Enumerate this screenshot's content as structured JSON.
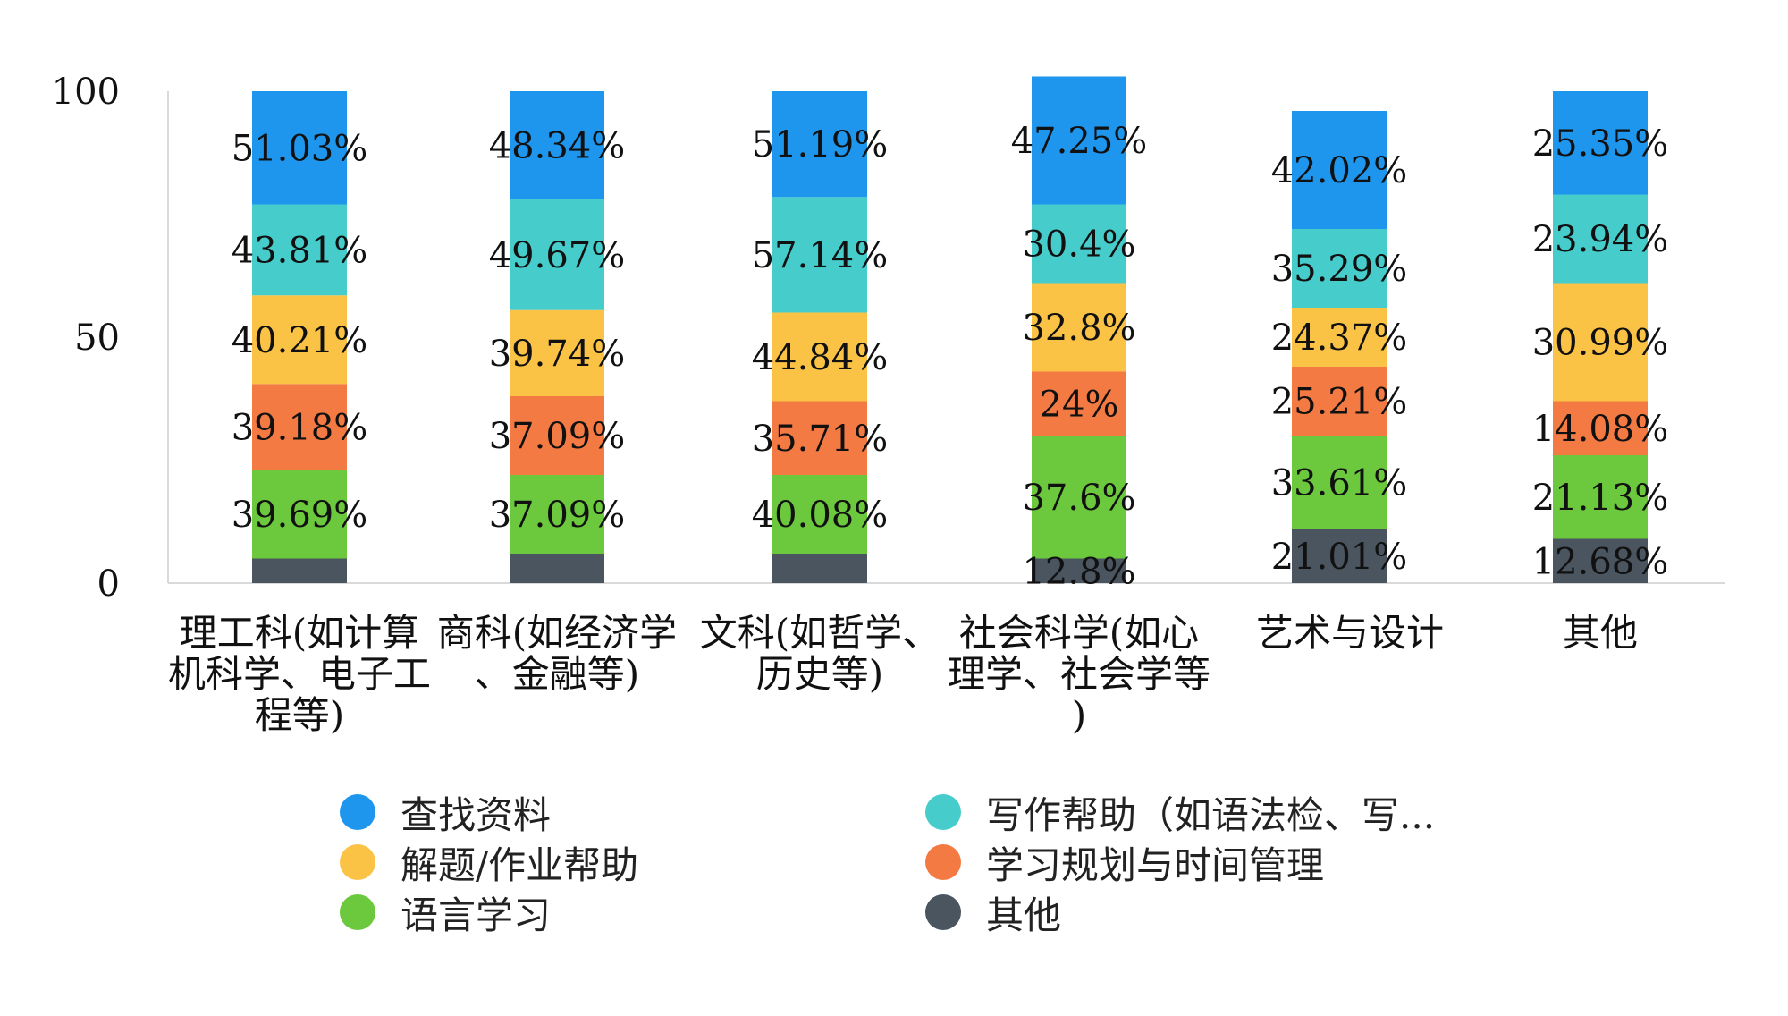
{
  "chart_data": {
    "type": "bar",
    "stacked": true,
    "ylim": [
      0,
      100
    ],
    "yticks": [
      "0",
      "50",
      "100"
    ],
    "grid": false,
    "legend_position": "bottom",
    "categories": [
      [
        "理工科(如计算",
        "机科学、电子工",
        "程等)"
      ],
      [
        "商科(如经济学",
        "、金融等)"
      ],
      [
        "文科(如哲学、",
        "历史等)"
      ],
      [
        "社会科学(如心",
        "理学、社会学等",
        ")"
      ],
      [
        "艺术与设计"
      ],
      [
        "其他"
      ]
    ],
    "series": [
      {
        "name": "其他",
        "color": "#4a5560",
        "heights": [
          5,
          6,
          6,
          5,
          11,
          9
        ],
        "labels": [
          "",
          "",
          "",
          "12.8%",
          "21.01%",
          "12.68%"
        ]
      },
      {
        "name": "语言学习",
        "color": "#6cc93e",
        "heights": [
          18,
          16,
          16,
          25,
          19,
          17
        ],
        "labels": [
          "39.69%",
          "37.09%",
          "40.08%",
          "37.6%",
          "33.61%",
          "21.13%"
        ]
      },
      {
        "name": "学习规划与时间管理",
        "color": "#f47a44",
        "heights": [
          17.5,
          16,
          15,
          13,
          14,
          11
        ],
        "labels": [
          "39.18%",
          "37.09%",
          "35.71%",
          "24%",
          "25.21%",
          "14.08%"
        ]
      },
      {
        "name": "解题/作业帮助",
        "color": "#fbc346",
        "heights": [
          18,
          17.5,
          18,
          18,
          12,
          24
        ],
        "labels": [
          "40.21%",
          "39.74%",
          "44.84%",
          "32.8%",
          "24.37%",
          "30.99%"
        ]
      },
      {
        "name": "写作帮助（如语法检、写...",
        "color": "#47cccc",
        "heights": [
          18.5,
          22.5,
          23.5,
          16,
          16,
          18
        ],
        "labels": [
          "43.81%",
          "49.67%",
          "57.14%",
          "30.4%",
          "35.29%",
          "23.94%"
        ]
      },
      {
        "name": "查找资料",
        "color": "#1e96ee",
        "heights": [
          23,
          22,
          21.5,
          26,
          24,
          21
        ],
        "labels": [
          "51.03%",
          "48.34%",
          "51.19%",
          "47.25%",
          "42.02%",
          "25.35%"
        ]
      }
    ]
  },
  "legend": [
    {
      "name": "查找资料",
      "color": "#1e96ee"
    },
    {
      "name": "写作帮助（如语法检、写...",
      "color": "#47cccc"
    },
    {
      "name": "解题/作业帮助",
      "color": "#fbc346"
    },
    {
      "name": "学习规划与时间管理",
      "color": "#f47a44"
    },
    {
      "name": "语言学习",
      "color": "#6cc93e"
    },
    {
      "name": "其他",
      "color": "#4a5560"
    }
  ]
}
